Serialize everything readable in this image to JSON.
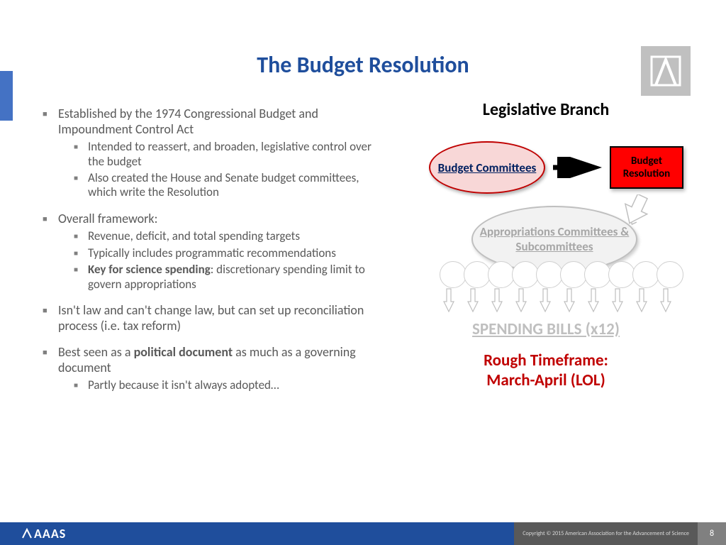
{
  "title": "The Budget Resolution",
  "colors": {
    "title": "#1f4e9c",
    "body_text": "#595959",
    "footer_bg": "#1f4e9c",
    "red_box": "#ff0000",
    "timeframe": "#c00000"
  },
  "bullets": [
    {
      "text": "Established by the 1974 Congressional Budget and Impoundment Control Act",
      "sub": [
        "Intended to reassert, and broaden, legislative control over the budget",
        "Also created the House and Senate budget committees, which write the Resolution"
      ]
    },
    {
      "text": "Overall framework:",
      "sub": [
        "Revenue, deficit, and total spending targets",
        "Typically includes programmatic recommendations",
        "<b>Key for science spending</b>: discretionary spending limit to govern appropriations"
      ]
    },
    {
      "text": "Isn't law and can't change law, but can set up reconciliation process (i.e. tax reform)",
      "sub": []
    },
    {
      "text": "Best seen as a <b>political document</b> as much as a governing document",
      "sub": [
        "Partly because it isn't always adopted…"
      ]
    }
  ],
  "diagram": {
    "heading": "Legislative Branch",
    "ellipse1": "Budget Committees",
    "box": "Budget Resolution",
    "ellipse2": "Appropriations Committees & Subcommittees",
    "spending": "SPENDING BILLS (x12)",
    "timeframe1": "Rough Timeframe:",
    "timeframe2": "March-April (LOL)",
    "small_circle_count": 10,
    "small_arrow_count": 10
  },
  "footer": {
    "logo": "AAAS",
    "copyright": "Copyright © 2015 American Association for the Advancement of Science",
    "page": "8"
  }
}
